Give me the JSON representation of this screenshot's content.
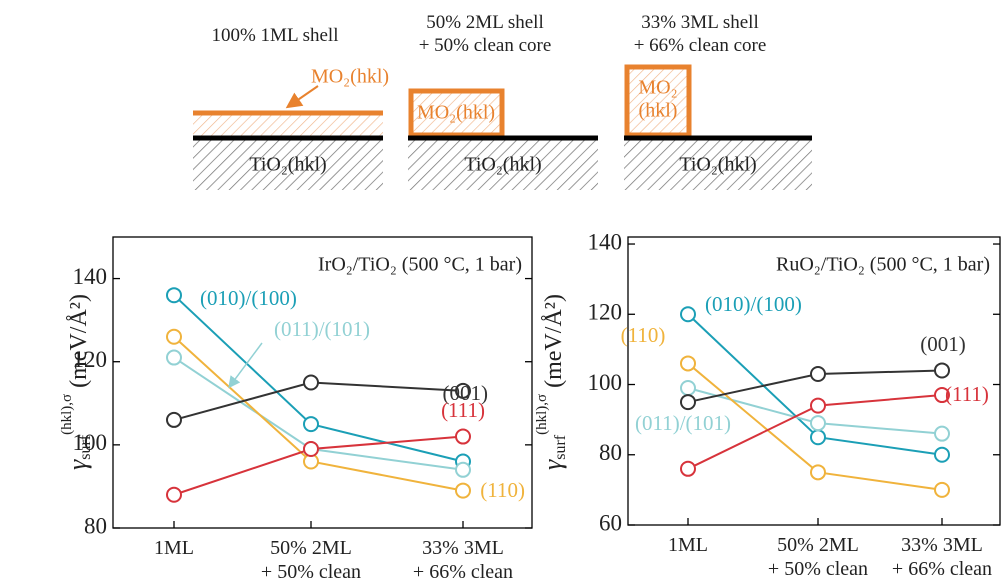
{
  "diagram": {
    "panels": [
      {
        "heading": "100% 1ML shell",
        "substrate": "TiO₂(hkl)"
      },
      {
        "heading": "50% 2ML shell\n+ 50% clean core",
        "substrate": "TiO₂(hkl)",
        "shell": "MO₂(hkl)"
      },
      {
        "heading": "33% 3ML shell\n+ 66% clean core",
        "substrate": "TiO₂(hkl)",
        "shell_lines": [
          "MO₂",
          "(hkl)"
        ]
      }
    ],
    "shell_label": "MO₂(hkl)"
  },
  "chart_data": [
    {
      "type": "line",
      "title": "IrO₂/TiO₂ (500 °C, 1 bar)",
      "y_label": {
        "symbol": "γ",
        "subscript": "surf",
        "superscript": "(hkl),σ",
        "unit": "(meV/Å²)"
      },
      "categories": [
        "1ML",
        "50% 2ML\n+ 50% clean",
        "33% 3ML\n+ 66% clean"
      ],
      "ylim": [
        80,
        150
      ],
      "yticks": [
        80,
        100,
        120,
        140
      ],
      "series": [
        {
          "name": "(010)/(100)",
          "color": "#1b9fb6",
          "values": [
            136,
            105,
            96
          ]
        },
        {
          "name": "(011)/(101)",
          "color": "#92d1d4",
          "values": [
            121,
            99,
            94
          ]
        },
        {
          "name": "(110)",
          "color": "#f0b33c",
          "values": [
            126,
            96,
            89
          ]
        },
        {
          "name": "(001)",
          "color": "#333333",
          "values": [
            106,
            115,
            113
          ]
        },
        {
          "name": "(111)",
          "color": "#d7333b",
          "values": [
            88,
            99,
            102
          ]
        }
      ]
    },
    {
      "type": "line",
      "title": "RuO₂/TiO₂ (500 °C, 1 bar)",
      "y_label": {
        "symbol": "γ",
        "subscript": "surf",
        "superscript": "(hkl),σ",
        "unit": "(meV/Å²)"
      },
      "categories": [
        "1ML",
        "50% 2ML\n+ 50% clean",
        "33% 3ML\n+ 66% clean"
      ],
      "ylim": [
        60,
        142
      ],
      "yticks": [
        60,
        80,
        100,
        120,
        140
      ],
      "series": [
        {
          "name": "(010)/(100)",
          "color": "#1b9fb6",
          "values": [
            120,
            85,
            80
          ]
        },
        {
          "name": "(011)/(101)",
          "color": "#92d1d4",
          "values": [
            99,
            89,
            86
          ]
        },
        {
          "name": "(110)",
          "color": "#f0b33c",
          "values": [
            106,
            75,
            70
          ]
        },
        {
          "name": "(001)",
          "color": "#333333",
          "values": [
            95,
            103,
            104
          ]
        },
        {
          "name": "(111)",
          "color": "#d7333b",
          "values": [
            76,
            94,
            97
          ]
        }
      ]
    }
  ]
}
